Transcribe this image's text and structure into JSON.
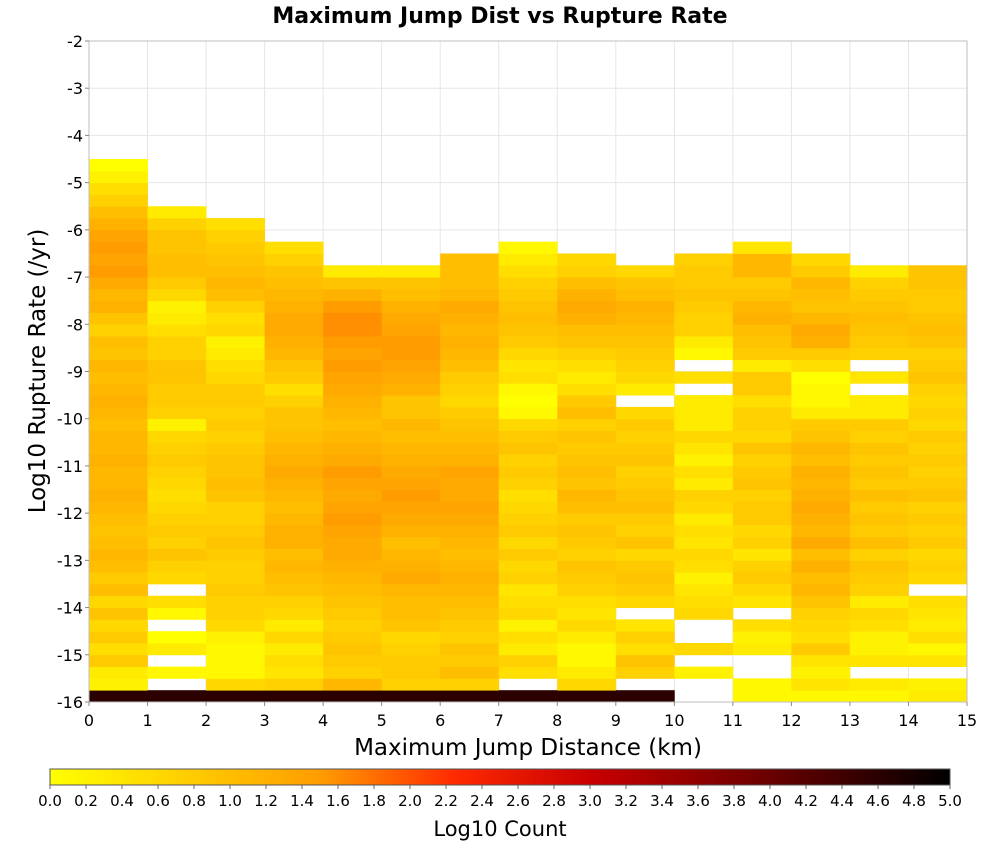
{
  "colors": {
    "scale": [
      "#ffff00",
      "#ffaa00",
      "#ff5500",
      "#e00000",
      "#9e0000",
      "#000000"
    ],
    "empty": "#ffffff"
  },
  "chart_data": {
    "type": "heatmap",
    "title": "Maximum Jump Dist vs Rupture Rate",
    "xlabel": "Maximum Jump Distance (km)",
    "ylabel": "Log10 Rupture Rate (/yr)",
    "xlim": [
      0,
      15
    ],
    "ylim": [
      -16,
      -2
    ],
    "x_ticks": [
      "0",
      "1",
      "2",
      "3",
      "4",
      "5",
      "6",
      "7",
      "8",
      "9",
      "10",
      "11",
      "12",
      "13",
      "14",
      "15"
    ],
    "y_ticks": [
      "-2",
      "-3",
      "-4",
      "-5",
      "-6",
      "-7",
      "-8",
      "-9",
      "-10",
      "-11",
      "-12",
      "-13",
      "-14",
      "-15",
      "-16"
    ],
    "x_bin_width": 1,
    "y_bin_height": 0.25,
    "y_bin_start": -16,
    "colorbar": {
      "label": "Log10 Count",
      "range": [
        0,
        5
      ],
      "ticks": [
        "0.0",
        "0.2",
        "0.4",
        "0.6",
        "0.8",
        "1.0",
        "1.2",
        "1.4",
        "1.6",
        "1.8",
        "2.0",
        "2.2",
        "2.4",
        "2.6",
        "2.8",
        "3.0",
        "3.2",
        "3.4",
        "3.6",
        "3.8",
        "4.0",
        "4.2",
        "4.4",
        "4.6",
        "4.8",
        "5.0"
      ]
    },
    "columns": [
      [
        4.6,
        0.2,
        0.3,
        0.8,
        0.5,
        0.8,
        0.6,
        0.9,
        0.6,
        1.0,
        0.8,
        1.0,
        1.1,
        1.0,
        0.9,
        1.0,
        1.1,
        1.2,
        1.1,
        1.1,
        1.2,
        1.1,
        1.1,
        1.0,
        1.1,
        1.2,
        1.1,
        1.0,
        1.1,
        0.9,
        1.0,
        0.7,
        0.9,
        1.2,
        1.1,
        1.3,
        1.5,
        1.4,
        1.5,
        1.4,
        1.2,
        1.0,
        0.7,
        0.5,
        0.2,
        0.0
      ],
      [
        4.6,
        null,
        0.1,
        null,
        0.3,
        0.0,
        null,
        0.1,
        0.5,
        null,
        0.6,
        0.7,
        0.9,
        0.7,
        0.8,
        0.7,
        0.6,
        0.5,
        0.6,
        0.7,
        0.8,
        0.7,
        0.6,
        0.2,
        0.7,
        0.8,
        0.8,
        0.9,
        0.9,
        0.7,
        0.7,
        0.5,
        0.3,
        0.2,
        0.6,
        0.8,
        1.0,
        1.0,
        0.9,
        0.9,
        0.7,
        0.3
      ],
      [
        4.6,
        0.6,
        0.1,
        0.1,
        0.1,
        0.2,
        0.6,
        0.7,
        0.7,
        0.8,
        0.7,
        0.7,
        0.8,
        0.9,
        0.8,
        0.7,
        0.7,
        0.9,
        1.0,
        0.9,
        0.9,
        0.8,
        0.7,
        0.8,
        0.7,
        0.8,
        0.8,
        0.6,
        0.5,
        0.3,
        0.2,
        0.6,
        0.5,
        0.7,
        1.0,
        1.1,
        1.0,
        0.9,
        0.8,
        0.7,
        0.5
      ],
      [
        4.6,
        0.7,
        0.4,
        0.5,
        0.3,
        0.6,
        0.3,
        0.6,
        0.7,
        0.9,
        1.0,
        1.1,
        1.0,
        1.2,
        1.2,
        1.1,
        1.0,
        1.1,
        1.2,
        1.3,
        1.2,
        1.1,
        1.0,
        0.9,
        0.9,
        0.7,
        0.5,
        0.8,
        0.9,
        1.1,
        1.2,
        1.3,
        1.3,
        1.2,
        1.1,
        1.0,
        0.9,
        0.7,
        0.5
      ],
      [
        4.6,
        1.1,
        0.7,
        0.8,
        0.9,
        0.8,
        0.7,
        0.8,
        0.9,
        1.0,
        1.1,
        1.2,
        1.3,
        1.3,
        1.4,
        1.5,
        1.4,
        1.3,
        1.4,
        1.5,
        1.3,
        1.2,
        1.1,
        1.0,
        1.1,
        1.2,
        1.3,
        1.4,
        1.5,
        1.4,
        1.5,
        1.6,
        1.6,
        1.5,
        1.2,
        0.9,
        0.3
      ],
      [
        4.6,
        0.7,
        0.8,
        0.8,
        0.7,
        0.6,
        0.9,
        1.0,
        1.0,
        1.1,
        1.3,
        1.2,
        1.1,
        1.0,
        1.2,
        1.3,
        1.4,
        1.5,
        1.4,
        1.3,
        1.2,
        1.1,
        1.0,
        1.1,
        0.9,
        0.9,
        1.2,
        1.3,
        1.4,
        1.5,
        1.5,
        1.4,
        1.3,
        1.2,
        1.0,
        0.9,
        0.3
      ],
      [
        4.6,
        0.7,
        1.0,
        0.8,
        0.9,
        0.7,
        0.8,
        0.9,
        1.0,
        1.1,
        1.2,
        1.1,
        1.0,
        1.1,
        1.2,
        1.3,
        1.4,
        1.3,
        1.3,
        1.4,
        1.2,
        1.1,
        1.0,
        0.9,
        0.8,
        0.6,
        0.7,
        0.8,
        1.0,
        1.1,
        1.2,
        1.1,
        1.2,
        1.3,
        1.1,
        1.0,
        1.0,
        1.0
      ],
      [
        4.6,
        null,
        0.5,
        0.7,
        0.3,
        0.5,
        0.2,
        0.6,
        0.5,
        0.4,
        0.7,
        0.6,
        0.8,
        0.6,
        0.8,
        0.7,
        0.6,
        0.5,
        0.7,
        0.8,
        0.7,
        0.9,
        0.8,
        0.6,
        0.1,
        0.0,
        0.1,
        0.5,
        0.4,
        0.6,
        0.8,
        0.9,
        1.0,
        0.9,
        0.8,
        0.7,
        0.5,
        0.3,
        0.1
      ],
      [
        4.6,
        0.6,
        0.3,
        0.1,
        0.1,
        0.3,
        0.6,
        0.4,
        0.5,
        0.7,
        0.8,
        0.9,
        0.7,
        0.8,
        0.9,
        0.8,
        1.0,
        1.1,
        0.9,
        1.0,
        0.9,
        0.8,
        0.9,
        0.7,
        1.0,
        0.8,
        0.5,
        0.3,
        0.5,
        0.7,
        0.9,
        1.0,
        1.2,
        1.3,
        1.2,
        1.0,
        0.7,
        0.6
      ],
      [
        4.6,
        null,
        0.7,
        0.9,
        0.5,
        0.7,
        0.4,
        null,
        0.6,
        0.8,
        0.9,
        0.8,
        0.6,
        0.9,
        0.7,
        0.8,
        1.0,
        0.9,
        0.8,
        0.7,
        0.9,
        0.8,
        0.7,
        0.8,
        0.6,
        null,
        0.3,
        0.6,
        0.7,
        0.8,
        0.9,
        1.0,
        1.1,
        1.2,
        1.0,
        0.9,
        0.6
      ],
      [
        null,
        null,
        0.2,
        null,
        0.6,
        null,
        null,
        0.6,
        0.5,
        0.4,
        0.2,
        0.5,
        0.6,
        0.4,
        0.5,
        0.3,
        0.6,
        0.7,
        0.3,
        0.5,
        0.2,
        0.4,
        0.6,
        0.3,
        0.3,
        0.3,
        null,
        0.5,
        null,
        0.1,
        0.3,
        0.7,
        0.7,
        0.8,
        0.9,
        0.8,
        0.8,
        0.7
      ],
      [
        0.1,
        0.1,
        null,
        null,
        0.3,
        0.2,
        0.5,
        null,
        0.4,
        0.6,
        0.8,
        0.7,
        0.4,
        0.7,
        0.6,
        0.8,
        0.8,
        0.7,
        0.9,
        0.8,
        0.7,
        0.9,
        0.6,
        0.7,
        0.7,
        0.5,
        0.8,
        0.8,
        0.3,
        0.8,
        0.9,
        1.0,
        1.2,
        1.1,
        0.9,
        0.8,
        1.1,
        1.1,
        0.4
      ],
      [
        0.1,
        0.4,
        0.2,
        0.4,
        0.8,
        0.5,
        0.6,
        0.7,
        0.9,
        1.1,
        1.0,
        1.2,
        1.0,
        1.3,
        1.1,
        1.2,
        1.3,
        1.2,
        1.1,
        1.2,
        1.0,
        1.1,
        0.9,
        0.8,
        0.3,
        0.1,
        0.1,
        0.0,
        0.5,
        0.8,
        1.2,
        1.3,
        1.1,
        0.9,
        1.0,
        1.1,
        0.8,
        0.6
      ],
      [
        0.1,
        0.3,
        null,
        0.4,
        0.2,
        0.2,
        0.5,
        0.6,
        0.3,
        0.7,
        0.8,
        0.9,
        0.7,
        1.0,
        0.8,
        0.9,
        0.8,
        1.0,
        0.8,
        0.9,
        0.8,
        0.9,
        0.7,
        0.8,
        0.3,
        0.3,
        null,
        0.4,
        null,
        0.7,
        0.8,
        0.9,
        1.0,
        0.9,
        0.8,
        0.7,
        0.3
      ],
      [
        0.3,
        0.2,
        null,
        0.4,
        0.1,
        0.5,
        0.3,
        0.4,
        0.5,
        null,
        0.6,
        0.7,
        0.6,
        0.8,
        0.7,
        0.8,
        0.7,
        0.9,
        0.8,
        0.7,
        0.8,
        0.7,
        0.8,
        0.6,
        0.7,
        0.6,
        0.7,
        0.9,
        0.8,
        0.7,
        0.9,
        1.0,
        0.9,
        0.8,
        0.8,
        0.9,
        0.9
      ]
    ]
  }
}
